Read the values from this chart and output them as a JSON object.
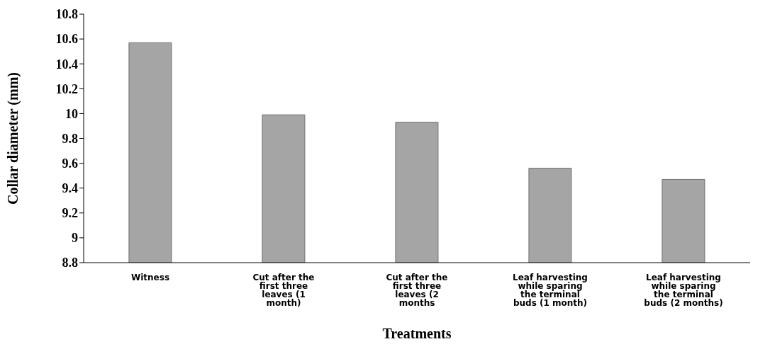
{
  "chart_data": {
    "type": "bar",
    "xlabel": "Treatments",
    "ylabel": "Collar diameter (mm)",
    "categories": [
      "Witness",
      "Cut after the first three leaves (1 month)",
      "Cut after the first three leaves (2 months",
      "Leaf harvesting while sparing the terminal buds (1 month)",
      "Leaf harvesting while sparing the terminal buds (2 months)"
    ],
    "values": [
      10.57,
      9.99,
      9.93,
      9.56,
      9.47
    ],
    "color": "#a5a5a5",
    "ylim": [
      8.8,
      10.8
    ],
    "yticks": [
      8.8,
      9,
      9.2,
      9.4,
      9.6,
      9.8,
      10,
      10.2,
      10.4,
      10.6,
      10.8
    ],
    "grid": false
  }
}
